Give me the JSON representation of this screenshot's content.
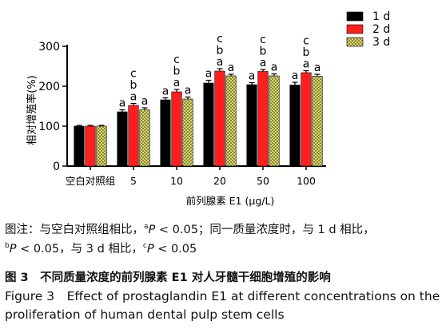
{
  "chart_data": {
    "type": "bar",
    "ylabel": "相对增殖率(%)",
    "xlabel": "前列腺素 E1 (μg/L)",
    "yticks": [
      0,
      100,
      200,
      300
    ],
    "ylim": [
      0,
      300
    ],
    "legend_position": "top-right",
    "categories": [
      "空白对照组",
      "5",
      "10",
      "20",
      "50",
      "100"
    ],
    "series": [
      {
        "name": "1 d",
        "color": "#000000",
        "pattern": "solid",
        "values": [
          100,
          136,
          166,
          208,
          204,
          203
        ],
        "errors": [
          2,
          5,
          5,
          7,
          5,
          7
        ],
        "labels": [
          "",
          "a",
          "a",
          "a",
          "a",
          "a"
        ]
      },
      {
        "name": "2 d",
        "color": "#ff1f1f",
        "pattern": "solid",
        "values": [
          100,
          152,
          186,
          238,
          237,
          234
        ],
        "errors": [
          2,
          5,
          6,
          6,
          5,
          5
        ],
        "labels": [
          "",
          "c b a",
          "c b a",
          "c b a",
          "c b a",
          "c b a"
        ]
      },
      {
        "name": "3 d",
        "color": "#8a8a3a",
        "pattern": "checker",
        "values": [
          100,
          141,
          168,
          226,
          226,
          225
        ],
        "errors": [
          2,
          5,
          5,
          4,
          5,
          5
        ],
        "labels": [
          "",
          "a",
          "a",
          "a",
          "a",
          "a"
        ]
      }
    ]
  },
  "caption": {
    "note_line1": "图注：与空白对照组相比，",
    "note_sup_a": "a",
    "note_p1": "P",
    "note_mid1": " < 0.05；同一质量浓度时，与 1 d 相比，",
    "note_sup_b": "b",
    "note_p2": "P",
    "note_mid2": " < 0.05，与 3 d 相比，",
    "note_sup_c": "c",
    "note_p3": "P",
    "note_end": " < 0.05",
    "title_cn": "图 3　不同质量浓度的前列腺素 E1 对人牙髓干细胞增殖的影响",
    "title_en": "Figure 3　Effect of prostaglandin E1 at different concentrations on the proliferation of human dental pulp stem cells"
  }
}
